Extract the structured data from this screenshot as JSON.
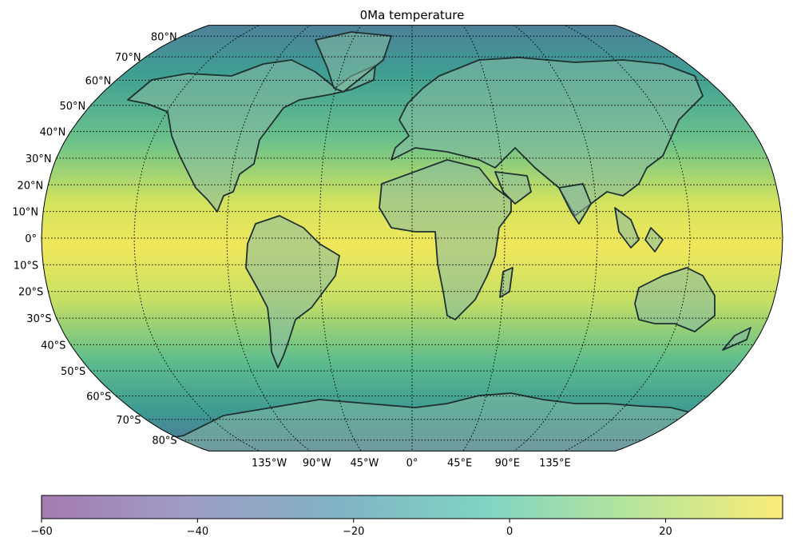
{
  "title": "0Ma temperature",
  "map": {
    "projection": "Robinson",
    "central_longitude": 0,
    "latitude_labels": [
      "80°N",
      "70°N",
      "60°N",
      "50°N",
      "40°N",
      "30°N",
      "20°N",
      "10°N",
      "0°",
      "10°S",
      "20°S",
      "30°S",
      "40°S",
      "50°S",
      "60°S",
      "70°S",
      "80°S"
    ],
    "latitude_values": [
      80,
      70,
      60,
      50,
      40,
      30,
      20,
      10,
      0,
      -10,
      -20,
      -30,
      -40,
      -50,
      -60,
      -70,
      -80
    ],
    "longitude_labels": [
      "135°W",
      "90°W",
      "45°W",
      "0°",
      "45°E",
      "90°E",
      "135°E"
    ],
    "longitude_values": [
      -135,
      -90,
      -45,
      0,
      45,
      90,
      135
    ],
    "gridline_style": "dotted",
    "coastline_color": "#1f3030"
  },
  "colorbar": {
    "colormap": "viridis",
    "ticks": [
      "−60",
      "−40",
      "−20",
      "0",
      "20"
    ],
    "tick_values": [
      -60,
      -40,
      -20,
      0,
      20
    ],
    "vmin": -60,
    "vmax": 35
  }
}
